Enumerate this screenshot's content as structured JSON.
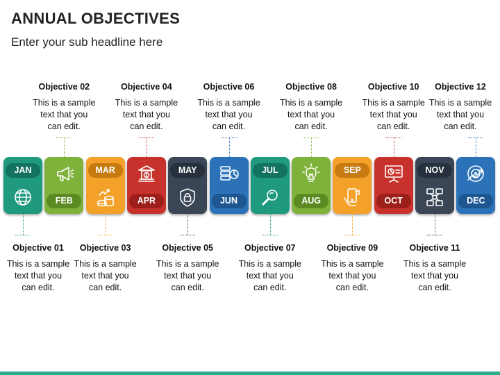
{
  "header": {
    "title": "ANNUAL OBJECTIVES",
    "subtitle": "Enter your sub headline here"
  },
  "months": [
    {
      "label": "JAN",
      "color": "#1f9a7e",
      "pill_color": "#13735e",
      "icon": "globe-icon"
    },
    {
      "label": "FEB",
      "color": "#7fb23a",
      "pill_color": "#5b8a22",
      "icon": "megaphone-icon"
    },
    {
      "label": "MAR",
      "color": "#f4a12a",
      "pill_color": "#c67a10",
      "icon": "coins-growth-icon"
    },
    {
      "label": "APR",
      "color": "#c8322d",
      "pill_color": "#9c1f1b",
      "icon": "bank-icon"
    },
    {
      "label": "MAY",
      "color": "#3a4656",
      "pill_color": "#27313d",
      "icon": "shield-lock-icon"
    },
    {
      "label": "JUN",
      "color": "#2b72b8",
      "pill_color": "#1d5690",
      "icon": "server-chart-icon"
    },
    {
      "label": "JUL",
      "color": "#1f9a7e",
      "pill_color": "#13735e",
      "icon": "magnifier-icon"
    },
    {
      "label": "AUG",
      "color": "#7fb23a",
      "pill_color": "#5b8a22",
      "icon": "lightbulb-icon"
    },
    {
      "label": "SEP",
      "color": "#f4a12a",
      "pill_color": "#c67a10",
      "icon": "hand-phone-icon"
    },
    {
      "label": "OCT",
      "color": "#c8322d",
      "pill_color": "#9c1f1b",
      "icon": "presentation-board-icon"
    },
    {
      "label": "NOV",
      "color": "#3a4656",
      "pill_color": "#27313d",
      "icon": "network-icon"
    },
    {
      "label": "DEC",
      "color": "#2b72b8",
      "pill_color": "#1d5690",
      "icon": "target-growth-icon"
    }
  ],
  "objectives": [
    {
      "title": "Objective 01",
      "text": [
        "This is a sample",
        "text that you",
        "can edit."
      ]
    },
    {
      "title": "Objective 02",
      "text": [
        "This is a sample",
        "text that you",
        "can edit."
      ]
    },
    {
      "title": "Objective 03",
      "text": [
        "This is a sample",
        "text that you",
        "can edit."
      ]
    },
    {
      "title": "Objective 04",
      "text": [
        "This is a sample",
        "text that you",
        "can edit."
      ]
    },
    {
      "title": "Objective 05",
      "text": [
        "This is a sample",
        "text that you",
        "can edit."
      ]
    },
    {
      "title": "Objective 06",
      "text": [
        "This is a sample",
        "text that you",
        "can edit."
      ]
    },
    {
      "title": "Objective 07",
      "text": [
        "This is a sample",
        "text that you",
        "can edit."
      ]
    },
    {
      "title": "Objective 08",
      "text": [
        "This is a sample",
        "text that you",
        "can edit."
      ]
    },
    {
      "title": "Objective 09",
      "text": [
        "This is a sample",
        "text that you",
        "can edit."
      ]
    },
    {
      "title": "Objective 10",
      "text": [
        "This is a sample",
        "text that you",
        "can edit."
      ]
    },
    {
      "title": "Objective 11",
      "text": [
        "This is a sample",
        "text that you",
        "can edit."
      ]
    },
    {
      "title": "Objective 12",
      "text": [
        "This is a sample",
        "text that you",
        "can edit."
      ]
    }
  ],
  "accent_color": "#2bab8e"
}
